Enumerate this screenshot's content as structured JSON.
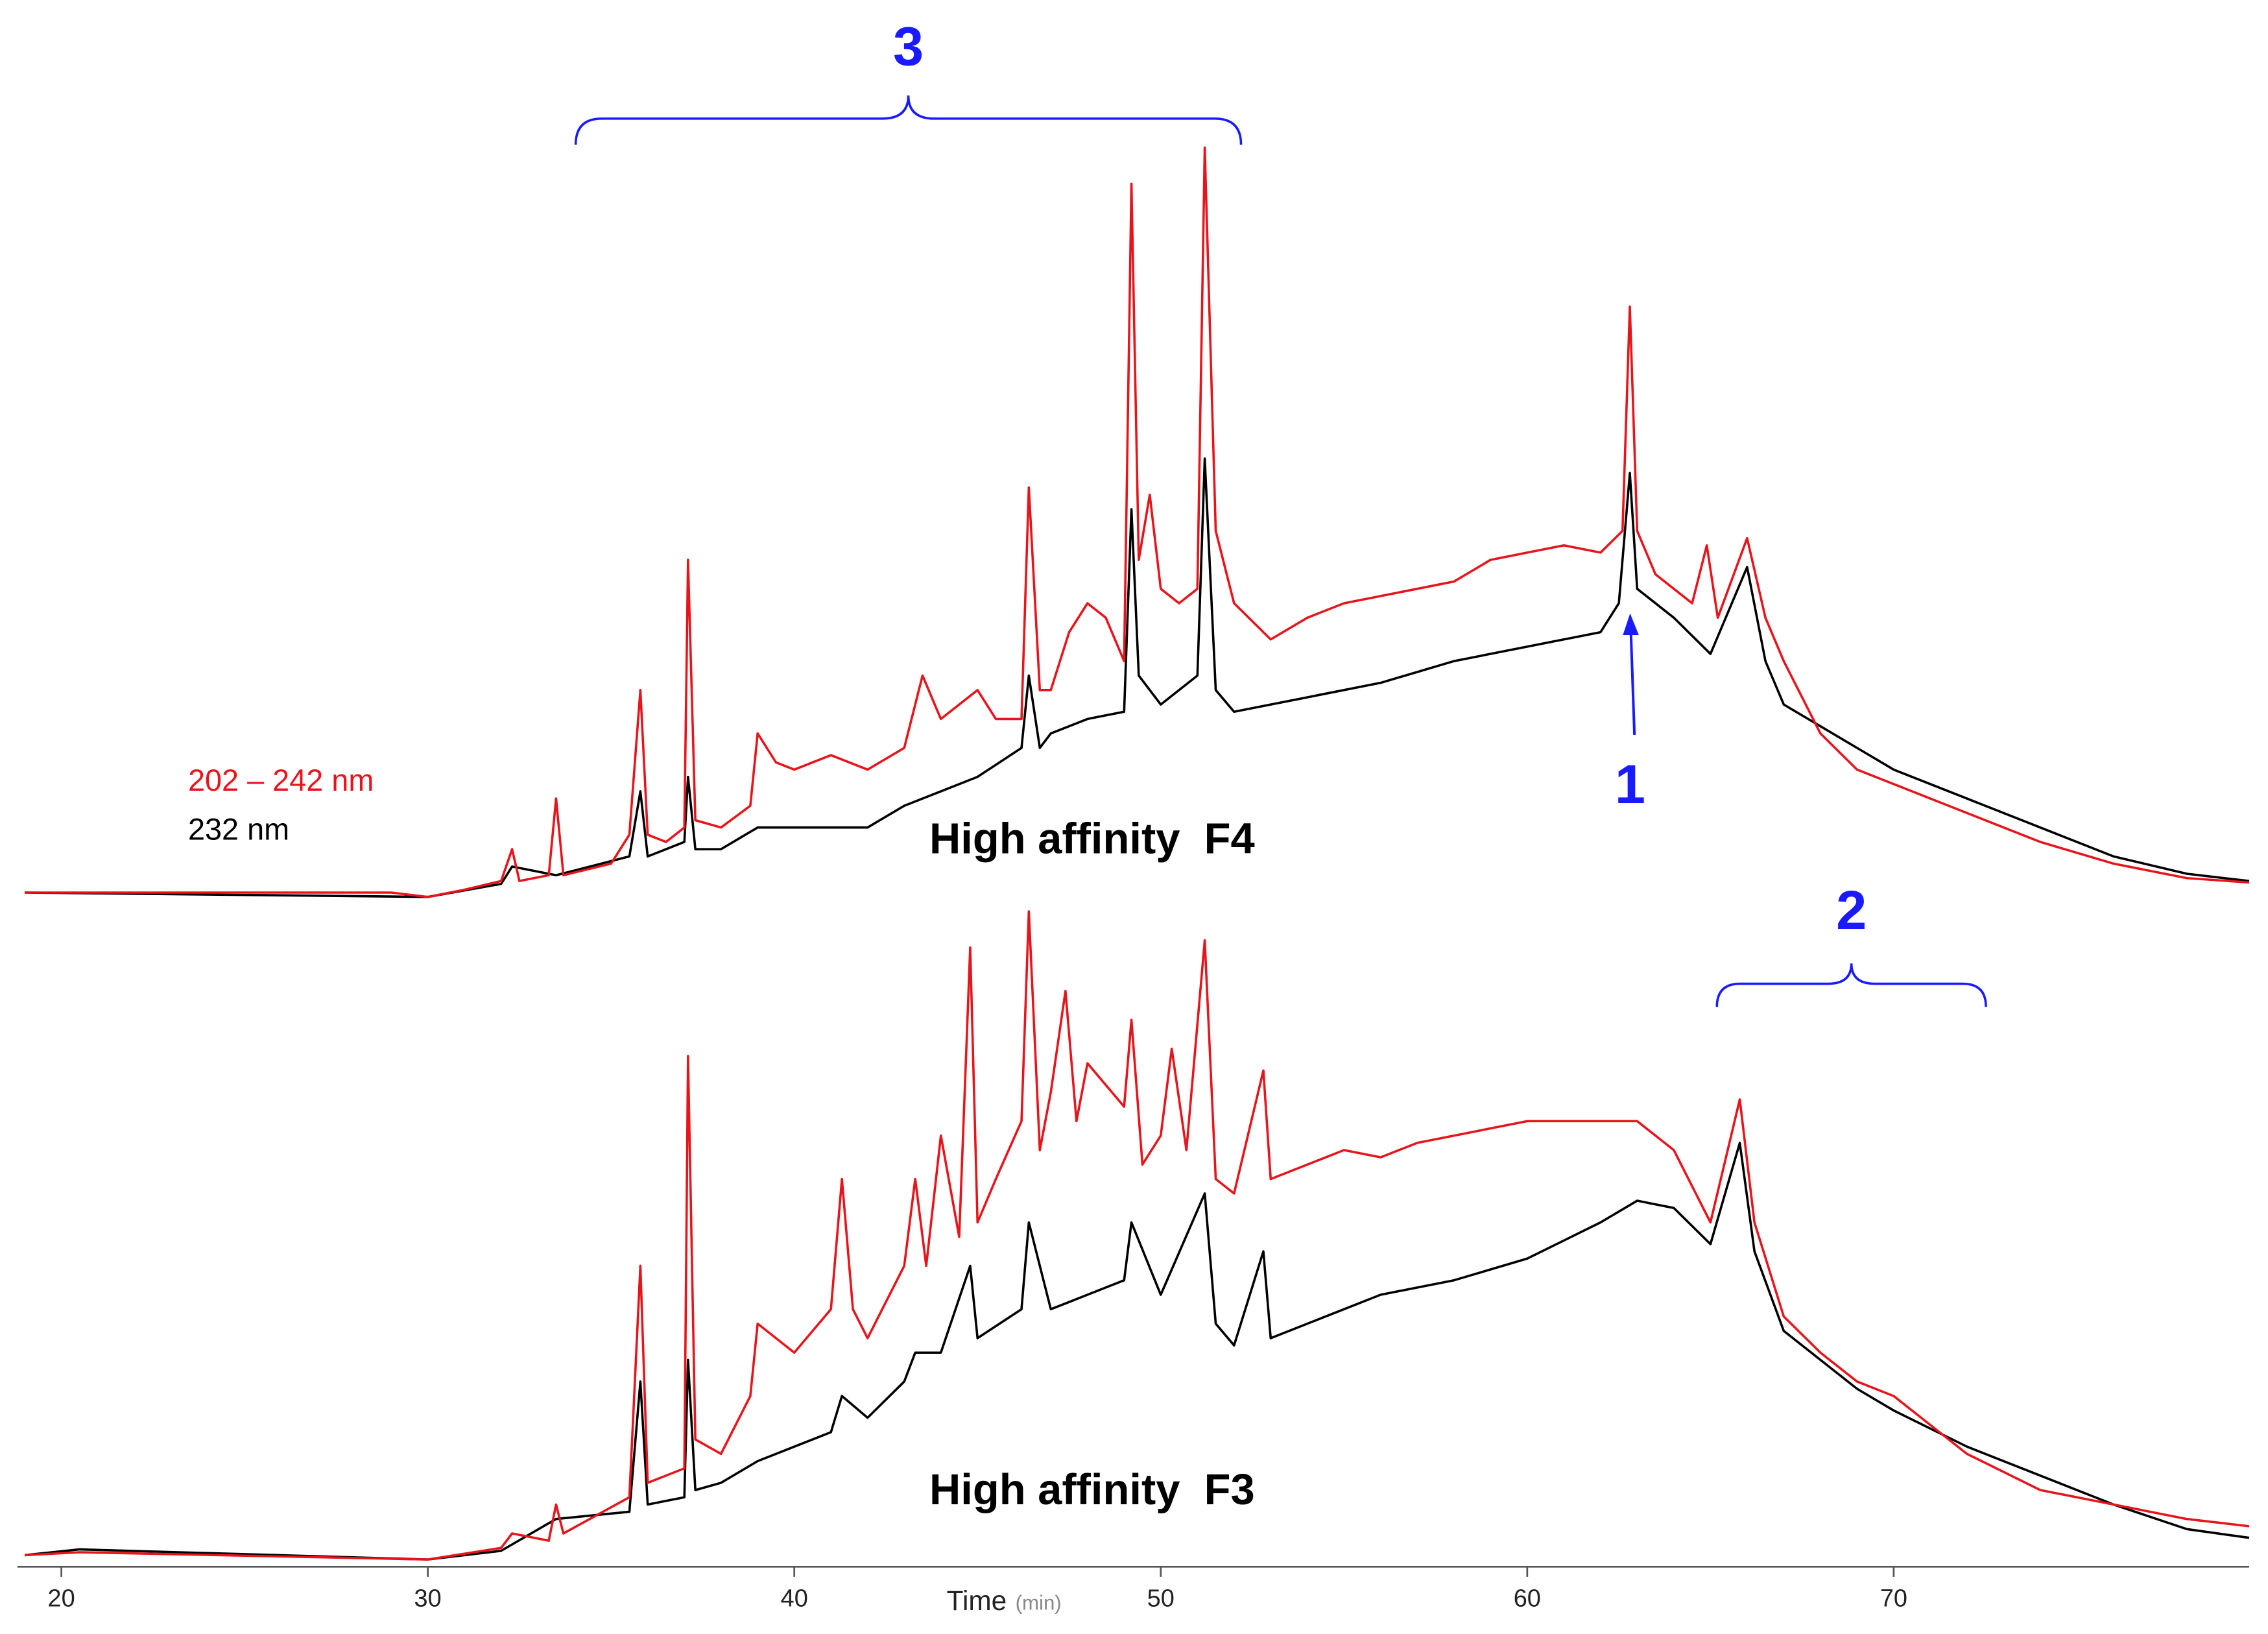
{
  "chart_data": [
    {
      "type": "line",
      "title": "High affinity  F4",
      "xlim": [
        18.8,
        79.7
      ],
      "ylim": [
        0,
        520
      ],
      "annotations": [
        "3",
        "1"
      ],
      "series": [
        {
          "name": "202 – 242 nm",
          "color": "#e8141b",
          "x": [
            19,
            29,
            30,
            31,
            32,
            32.3,
            32.5,
            33.3,
            33.5,
            33.7,
            35,
            35.5,
            35.8,
            36,
            36.5,
            37,
            37.1,
            37.3,
            38,
            38.8,
            39,
            39.5,
            40,
            41,
            42,
            43,
            43.5,
            44,
            45,
            45.5,
            46.2,
            46.4,
            46.7,
            47,
            47.5,
            48,
            48.5,
            49,
            49.2,
            49.4,
            49.7,
            50,
            50.5,
            51,
            51.2,
            51.5,
            52,
            53,
            54,
            55,
            56,
            57,
            58,
            59,
            60,
            61,
            62,
            62.6,
            62.8,
            63,
            63.5,
            64,
            64.5,
            64.9,
            65.2,
            66,
            66.5,
            67,
            68,
            69,
            70,
            72,
            74,
            76,
            78,
            79.7
          ],
          "values": [
            0,
            0,
            -3,
            2,
            8,
            30,
            8,
            12,
            65,
            12,
            20,
            40,
            140,
            40,
            35,
            45,
            230,
            50,
            45,
            60,
            110,
            90,
            85,
            95,
            85,
            100,
            150,
            120,
            140,
            120,
            120,
            280,
            140,
            140,
            180,
            200,
            190,
            160,
            490,
            230,
            275,
            210,
            200,
            210,
            515,
            250,
            200,
            175,
            190,
            200,
            205,
            210,
            215,
            230,
            235,
            240,
            235,
            250,
            405,
            250,
            220,
            210,
            200,
            240,
            190,
            245,
            190,
            160,
            110,
            85,
            75,
            55,
            35,
            20,
            10,
            7
          ]
        },
        {
          "name": "232 nm",
          "color": "#000000",
          "x": [
            19,
            30,
            32,
            32.3,
            33.5,
            35.5,
            35.8,
            36,
            37,
            37.1,
            37.3,
            38,
            39,
            40,
            42,
            43,
            44,
            45,
            46.2,
            46.4,
            46.7,
            47,
            48,
            49,
            49.2,
            49.4,
            50,
            51,
            51.2,
            51.5,
            52,
            54,
            56,
            58,
            60,
            62,
            62.5,
            62.8,
            63,
            64,
            65,
            66,
            66.5,
            67,
            68,
            69,
            70,
            72,
            74,
            76,
            78,
            79.7
          ],
          "values": [
            0,
            -3,
            6,
            18,
            12,
            25,
            70,
            25,
            35,
            80,
            30,
            30,
            45,
            45,
            45,
            60,
            70,
            80,
            100,
            150,
            100,
            110,
            120,
            125,
            265,
            150,
            130,
            150,
            300,
            140,
            125,
            135,
            145,
            160,
            170,
            180,
            200,
            290,
            210,
            190,
            165,
            225,
            160,
            130,
            115,
            100,
            85,
            65,
            45,
            25,
            13,
            8
          ]
        }
      ]
    },
    {
      "type": "line",
      "title": "High affinity  F3",
      "xlim": [
        18.8,
        79.7
      ],
      "ylim": [
        0,
        520
      ],
      "xticks": [
        20,
        30,
        40,
        50,
        60,
        70
      ],
      "xlabel": "Time",
      "xlabel_unit": "(min)",
      "annotations": [
        "2"
      ],
      "series": [
        {
          "color": "#e8141b",
          "x": [
            19,
            20.5,
            30,
            32,
            32.3,
            33.3,
            33.5,
            33.7,
            35.5,
            35.8,
            36,
            37,
            37.1,
            37.3,
            38,
            38.8,
            39,
            40,
            41,
            41.3,
            41.6,
            42,
            43,
            43.3,
            43.6,
            44,
            44.5,
            44.8,
            45,
            45.5,
            46.2,
            46.4,
            46.7,
            47,
            47.4,
            47.7,
            48,
            49,
            49.2,
            49.5,
            50,
            50.3,
            50.7,
            51.2,
            51.5,
            52,
            52.8,
            53,
            54,
            55,
            56,
            57,
            58,
            59,
            60,
            62,
            63,
            64,
            65,
            65.8,
            66.2,
            67,
            68,
            69,
            70,
            71,
            72,
            74,
            76,
            78,
            79.7
          ],
          "values": [
            0,
            2,
            -3,
            5,
            15,
            10,
            35,
            15,
            40,
            200,
            50,
            60,
            345,
            80,
            70,
            110,
            160,
            140,
            170,
            260,
            170,
            150,
            200,
            260,
            200,
            290,
            220,
            420,
            230,
            260,
            300,
            445,
            280,
            320,
            390,
            300,
            340,
            310,
            370,
            270,
            290,
            350,
            280,
            425,
            260,
            250,
            335,
            260,
            270,
            280,
            275,
            285,
            290,
            295,
            300,
            300,
            300,
            280,
            230,
            315,
            230,
            165,
            140,
            120,
            110,
            90,
            70,
            45,
            35,
            25,
            20
          ]
        },
        {
          "color": "#000000",
          "x": [
            19,
            20.5,
            30,
            32,
            33.5,
            35.5,
            35.8,
            36,
            37,
            37.1,
            37.3,
            38,
            39,
            40,
            41,
            41.3,
            42,
            43,
            43.3,
            44,
            44.8,
            45,
            46.2,
            46.4,
            47,
            48,
            49,
            49.2,
            50,
            51.2,
            51.5,
            52,
            52.8,
            53,
            54,
            56,
            58,
            60,
            62,
            63,
            64,
            65,
            65.8,
            66.2,
            67,
            68,
            69,
            70,
            72,
            74,
            76,
            78,
            79.7
          ],
          "values": [
            0,
            4,
            -3,
            3,
            25,
            30,
            120,
            35,
            40,
            135,
            45,
            50,
            65,
            75,
            85,
            110,
            95,
            120,
            140,
            140,
            200,
            150,
            170,
            230,
            170,
            180,
            190,
            230,
            180,
            250,
            160,
            145,
            210,
            150,
            160,
            180,
            190,
            205,
            230,
            245,
            240,
            215,
            285,
            210,
            155,
            135,
            115,
            100,
            75,
            55,
            35,
            18,
            12
          ]
        }
      ]
    }
  ]
}
